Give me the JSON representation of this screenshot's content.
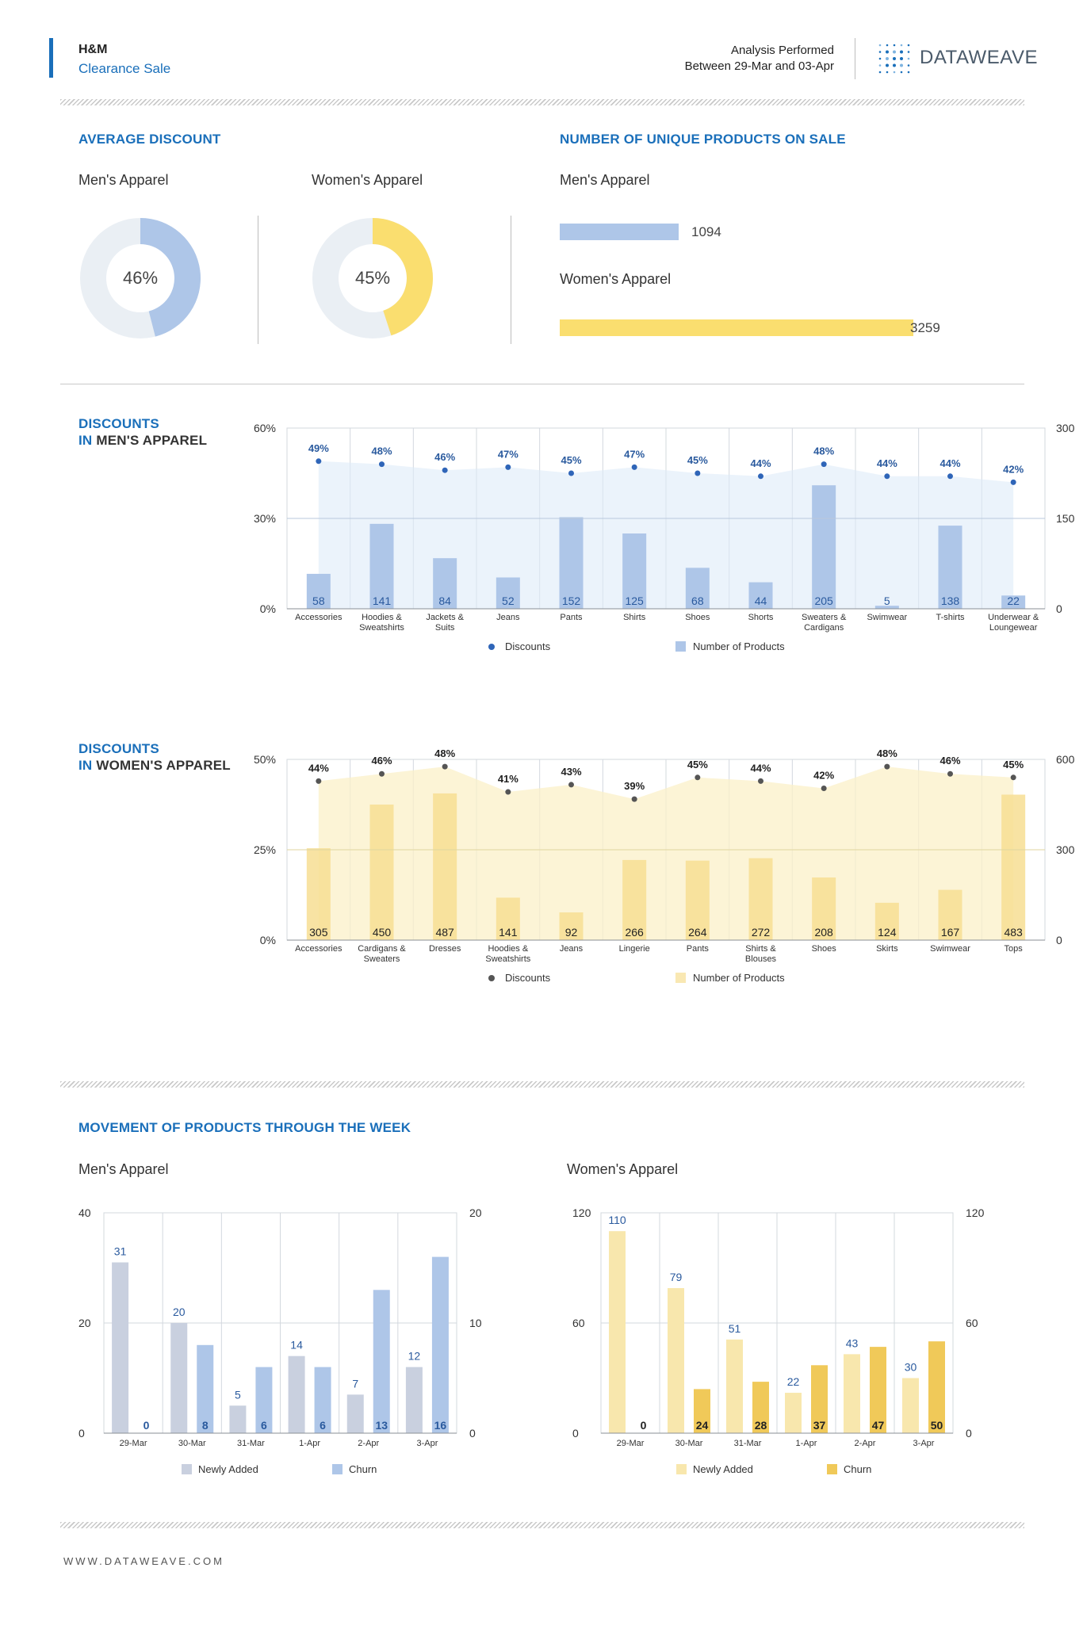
{
  "header": {
    "brand": "H&M",
    "subtitle": "Clearance Sale",
    "analysis_line1": "Analysis Performed",
    "analysis_line2": "Between 29-Mar and 03-Apr",
    "logo_text": "DATAWEAVE"
  },
  "colors": {
    "accent": "#1a6fba",
    "men": "#aec6e8",
    "women": "#fade6f",
    "women_light": "#f8e7ad",
    "churn_women": "#f0c959",
    "newly_men": "#c9d0df"
  },
  "avg_discount": {
    "title": "AVERAGE DISCOUNT",
    "men_label": "Men's Apparel",
    "women_label": "Women's Apparel",
    "men_value": "46%",
    "women_value": "45%",
    "men_fraction": 0.46,
    "women_fraction": 0.45
  },
  "unique_products": {
    "title": "NUMBER OF UNIQUE PRODUCTS ON SALE",
    "men_label": "Men's Apparel",
    "women_label": "Women's Apparel",
    "men_value": "1094",
    "women_value": "3259"
  },
  "men_section": {
    "title_line1": "DISCOUNTS",
    "title_in": "IN ",
    "title_rest": "MEN'S APPAREL"
  },
  "women_section": {
    "title_line1": "DISCOUNTS",
    "title_in": "IN ",
    "title_rest": "WOMEN'S APPAREL"
  },
  "movement": {
    "title": "MOVEMENT OF PRODUCTS THROUGH THE WEEK",
    "men_label": "Men's Apparel",
    "women_label": "Women's Apparel"
  },
  "footer": {
    "url": "WWW.DATAWEAVE.COM"
  },
  "chart_data": [
    {
      "type": "bar",
      "id": "men-discounts",
      "categories": [
        "Accessories",
        "Hoodies & Sweatshirts",
        "Jackets & Suits",
        "Jeans",
        "Pants",
        "Shirts",
        "Shoes",
        "Shorts",
        "Sweaters & Cardigans",
        "Swimwear",
        "T-shirts",
        "Underwear & Loungewear"
      ],
      "series": [
        {
          "name": "Discounts",
          "values": [
            49,
            48,
            46,
            47,
            45,
            47,
            45,
            44,
            48,
            44,
            44,
            42
          ],
          "axis": "left",
          "unit": "%"
        },
        {
          "name": "Number of Products",
          "values": [
            58,
            141,
            84,
            52,
            152,
            125,
            68,
            44,
            205,
            5,
            138,
            22
          ],
          "axis": "right"
        }
      ],
      "left_ticks": [
        "0%",
        "30%",
        "60%"
      ],
      "ylim_left": [
        0,
        60
      ],
      "right_ticks": [
        "0",
        "150",
        "300"
      ],
      "ylim_right": [
        0,
        300
      ]
    },
    {
      "type": "bar",
      "id": "women-discounts",
      "categories": [
        "Accessories",
        "Cardigans & Sweaters",
        "Dresses",
        "Hoodies & Sweatshirts",
        "Jeans",
        "Lingerie",
        "Pants",
        "Shirts & Blouses",
        "Shoes",
        "Skirts",
        "Swimwear",
        "Tops"
      ],
      "series": [
        {
          "name": "Discounts",
          "values": [
            44,
            46,
            48,
            41,
            43,
            39,
            45,
            44,
            42,
            48,
            46,
            45
          ],
          "axis": "left",
          "unit": "%"
        },
        {
          "name": "Number of Products",
          "values": [
            305,
            450,
            487,
            141,
            92,
            266,
            264,
            272,
            208,
            124,
            167,
            483
          ],
          "axis": "right"
        }
      ],
      "left_ticks": [
        "0%",
        "25%",
        "50%"
      ],
      "ylim_left": [
        0,
        50
      ],
      "right_ticks": [
        "0",
        "300",
        "600"
      ],
      "ylim_right": [
        0,
        600
      ]
    },
    {
      "type": "bar",
      "id": "men-movement",
      "categories": [
        "29-Mar",
        "30-Mar",
        "31-Mar",
        "1-Apr",
        "2-Apr",
        "3-Apr"
      ],
      "series": [
        {
          "name": "Newly Added",
          "values": [
            31,
            20,
            5,
            14,
            7,
            12
          ],
          "axis": "left"
        },
        {
          "name": "Churn",
          "values": [
            0,
            8,
            6,
            6,
            13,
            16
          ],
          "axis": "right"
        }
      ],
      "left_ticks": [
        "0",
        "20",
        "40"
      ],
      "ylim_left": [
        0,
        40
      ],
      "right_ticks": [
        "0",
        "10",
        "20"
      ],
      "ylim_right": [
        0,
        20
      ]
    },
    {
      "type": "bar",
      "id": "women-movement",
      "categories": [
        "29-Mar",
        "30-Mar",
        "31-Mar",
        "1-Apr",
        "2-Apr",
        "3-Apr"
      ],
      "series": [
        {
          "name": "Newly Added",
          "values": [
            110,
            79,
            51,
            22,
            43,
            30
          ],
          "axis": "left"
        },
        {
          "name": "Churn",
          "values": [
            0,
            24,
            28,
            37,
            47,
            50
          ],
          "axis": "right"
        }
      ],
      "left_ticks": [
        "0",
        "60",
        "120"
      ],
      "ylim_left": [
        0,
        120
      ],
      "right_ticks": [
        "0",
        "60",
        "120"
      ],
      "ylim_right": [
        0,
        120
      ]
    }
  ]
}
